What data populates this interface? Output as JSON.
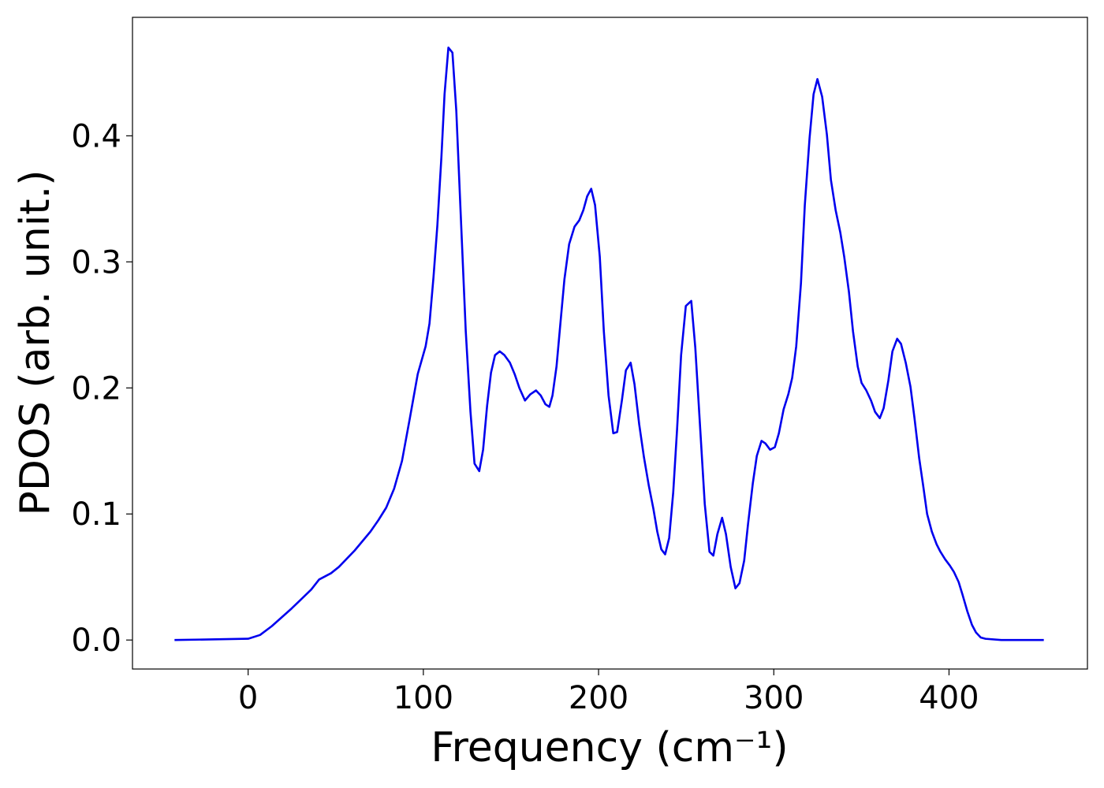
{
  "chart_data": {
    "type": "line",
    "xlabel": "Frequency (cm⁻¹)",
    "ylabel": "PDOS (arb. unit.)",
    "x": [
      -42,
      0,
      6.8,
      13.5,
      24.8,
      36,
      40.5,
      47.3,
      51.8,
      60.8,
      69.8,
      74.3,
      78.8,
      83.3,
      87.8,
      92.3,
      96.8,
      101.3,
      103.5,
      105.8,
      108,
      110.3,
      112.1,
      114.3,
      116.6,
      118.8,
      121.1,
      124.2,
      126.9,
      129.2,
      131.9,
      134.1,
      136.4,
      138.6,
      140.9,
      143.6,
      146.3,
      149.4,
      152.1,
      154.8,
      158,
      161.1,
      164.3,
      167,
      169.7,
      171.9,
      173.7,
      176,
      178.2,
      180.5,
      183.2,
      186.3,
      189,
      191.3,
      193.5,
      195.8,
      198,
      200.7,
      203,
      205.7,
      208.4,
      210.6,
      213.3,
      215.6,
      218.3,
      220.5,
      223.2,
      225.9,
      228.6,
      231.3,
      233.5,
      235.8,
      238,
      240.3,
      242.6,
      244.8,
      247.1,
      249.8,
      252.9,
      255.2,
      257.9,
      260.6,
      263.3,
      265.5,
      267.8,
      270.5,
      272.7,
      275.4,
      278.1,
      280.4,
      283.1,
      285.3,
      288,
      290.3,
      293,
      295.2,
      297.9,
      300.6,
      302.9,
      305.6,
      308.3,
      310.5,
      312.8,
      315.5,
      317.7,
      320.4,
      322.7,
      324.9,
      327.6,
      330.3,
      332.6,
      335.3,
      338,
      340.2,
      342.9,
      345.2,
      347.9,
      350.1,
      352.8,
      355.5,
      357.8,
      360.5,
      362.7,
      365.4,
      367.7,
      370.4,
      372.6,
      375.3,
      378,
      380.3,
      383,
      385.2,
      387.5,
      390.2,
      392.9,
      395.1,
      397.8,
      400.5,
      402.8,
      405.5,
      407.7,
      410.4,
      413.1,
      415.4,
      418.1,
      420.8,
      429.8,
      454.1
    ],
    "series": [
      {
        "name": "PDOS",
        "color": "#0000ee",
        "values": [
          0,
          0.001,
          0.004,
          0.011,
          0.025,
          0.04,
          0.048,
          0.053,
          0.058,
          0.071,
          0.086,
          0.095,
          0.105,
          0.12,
          0.142,
          0.176,
          0.211,
          0.233,
          0.251,
          0.288,
          0.329,
          0.383,
          0.433,
          0.47,
          0.466,
          0.42,
          0.345,
          0.245,
          0.181,
          0.14,
          0.134,
          0.151,
          0.186,
          0.212,
          0.226,
          0.229,
          0.226,
          0.22,
          0.211,
          0.2,
          0.19,
          0.195,
          0.198,
          0.194,
          0.187,
          0.185,
          0.194,
          0.217,
          0.251,
          0.286,
          0.314,
          0.328,
          0.333,
          0.341,
          0.352,
          0.358,
          0.345,
          0.304,
          0.245,
          0.194,
          0.164,
          0.165,
          0.19,
          0.214,
          0.22,
          0.203,
          0.171,
          0.145,
          0.123,
          0.104,
          0.086,
          0.072,
          0.068,
          0.081,
          0.117,
          0.167,
          0.226,
          0.265,
          0.269,
          0.232,
          0.17,
          0.108,
          0.07,
          0.067,
          0.084,
          0.097,
          0.084,
          0.058,
          0.041,
          0.045,
          0.063,
          0.092,
          0.124,
          0.146,
          0.158,
          0.156,
          0.151,
          0.153,
          0.164,
          0.183,
          0.195,
          0.208,
          0.233,
          0.283,
          0.345,
          0.398,
          0.433,
          0.445,
          0.431,
          0.401,
          0.365,
          0.341,
          0.323,
          0.304,
          0.276,
          0.245,
          0.217,
          0.204,
          0.198,
          0.19,
          0.181,
          0.176,
          0.184,
          0.206,
          0.229,
          0.239,
          0.235,
          0.22,
          0.201,
          0.176,
          0.144,
          0.123,
          0.1,
          0.086,
          0.076,
          0.07,
          0.064,
          0.059,
          0.054,
          0.046,
          0.036,
          0.023,
          0.012,
          0.006,
          0.002,
          0.001,
          0,
          0
        ]
      }
    ],
    "xlim": [
      -66,
      479
    ],
    "xticks": [
      0,
      100,
      200,
      300,
      400
    ],
    "ylim": [
      -0.023,
      0.494
    ],
    "yticks": [
      {
        "value": 0,
        "label": "0.0"
      },
      {
        "value": 0.1,
        "label": "0.1"
      },
      {
        "value": 0.2,
        "label": "0.2"
      },
      {
        "value": 0.3,
        "label": "0.3"
      },
      {
        "value": 0.4,
        "label": "0.4"
      }
    ],
    "grid": false
  }
}
